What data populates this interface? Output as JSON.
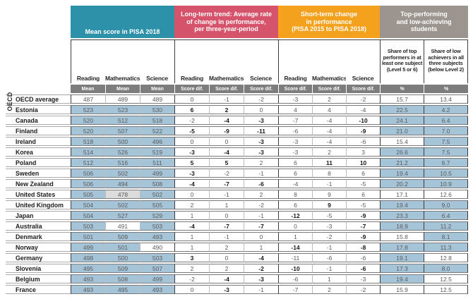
{
  "side_label": "OECD",
  "header": {
    "groups": [
      {
        "title_lines": [
          "Mean score in PISA 2018"
        ],
        "color": "#2d91a9"
      },
      {
        "title_lines": [
          "Long-term trend: Average rate",
          "of change in performance,",
          "per three-year-period"
        ],
        "color": "#d5536b"
      },
      {
        "title_lines": [
          "Short-term change",
          "in performance",
          "(PISA 2015 to PISA 2018)"
        ],
        "color": "#f4a11d"
      },
      {
        "title_lines": [
          "Top-performing",
          "and low-achieving",
          "students"
        ],
        "color": "#9c948e"
      }
    ],
    "subjects": [
      "Reading",
      "Mathematics",
      "Science"
    ],
    "share_top_label": "Share of top performers in at least one subject (Level 5 or 6)",
    "share_low_label": "Share of low achievers in all three subjects (below Level 2)",
    "measure_mean": "Mean",
    "measure_scoredif": "Score dif.",
    "measure_pct": "%"
  },
  "legend_colors": {
    "above_oecd_avg_cell": "#a6c4d7",
    "below_oecd_avg_cell": "#dcdcdc",
    "significant_value": "bold"
  },
  "rows": [
    {
      "name": "OECD average",
      "cells": [
        {
          "v": "487"
        },
        {
          "v": "489"
        },
        {
          "v": "489"
        },
        {
          "v": "0"
        },
        {
          "v": "-1"
        },
        {
          "v": "-2"
        },
        {
          "v": "-3"
        },
        {
          "v": "2"
        },
        {
          "v": "-2"
        },
        {
          "v": "15.7"
        },
        {
          "v": "13.4"
        }
      ]
    },
    {
      "name": "Estonia",
      "cells": [
        {
          "v": "523",
          "c": "b"
        },
        {
          "v": "523",
          "c": "b"
        },
        {
          "v": "530",
          "c": "b"
        },
        {
          "v": "6",
          "f": 1
        },
        {
          "v": "2",
          "f": 1
        },
        {
          "v": "0"
        },
        {
          "v": "4"
        },
        {
          "v": "4"
        },
        {
          "v": "-4"
        },
        {
          "v": "22.5",
          "c": "b"
        },
        {
          "v": "4.2",
          "c": "b"
        }
      ]
    },
    {
      "name": "Canada",
      "cells": [
        {
          "v": "520",
          "c": "b"
        },
        {
          "v": "512",
          "c": "b"
        },
        {
          "v": "518",
          "c": "b"
        },
        {
          "v": "-2"
        },
        {
          "v": "-4",
          "f": 1
        },
        {
          "v": "-3",
          "f": 1
        },
        {
          "v": "-7"
        },
        {
          "v": "-4"
        },
        {
          "v": "-10",
          "f": 1
        },
        {
          "v": "24.1",
          "c": "b"
        },
        {
          "v": "6.4",
          "c": "b"
        }
      ]
    },
    {
      "name": "Finland",
      "cells": [
        {
          "v": "520",
          "c": "b"
        },
        {
          "v": "507",
          "c": "b"
        },
        {
          "v": "522",
          "c": "b"
        },
        {
          "v": "-5",
          "f": 1
        },
        {
          "v": "-9",
          "f": 1
        },
        {
          "v": "-11",
          "f": 1
        },
        {
          "v": "-6"
        },
        {
          "v": "-4"
        },
        {
          "v": "-9",
          "f": 1
        },
        {
          "v": "21.0",
          "c": "b"
        },
        {
          "v": "7.0",
          "c": "b"
        }
      ]
    },
    {
      "name": "Ireland",
      "cells": [
        {
          "v": "518",
          "c": "b"
        },
        {
          "v": "500",
          "c": "b"
        },
        {
          "v": "496",
          "c": "b"
        },
        {
          "v": "0"
        },
        {
          "v": "0"
        },
        {
          "v": "-3",
          "f": 1
        },
        {
          "v": "-3"
        },
        {
          "v": "-4"
        },
        {
          "v": "-6"
        },
        {
          "v": "15.4"
        },
        {
          "v": "7.5",
          "c": "b"
        }
      ]
    },
    {
      "name": "Korea",
      "cells": [
        {
          "v": "514",
          "c": "b"
        },
        {
          "v": "526",
          "c": "b"
        },
        {
          "v": "519",
          "c": "b"
        },
        {
          "v": "-3",
          "f": 1
        },
        {
          "v": "-4",
          "f": 1
        },
        {
          "v": "-3",
          "f": 1
        },
        {
          "v": "-3"
        },
        {
          "v": "2"
        },
        {
          "v": "3"
        },
        {
          "v": "26.6",
          "c": "b"
        },
        {
          "v": "7.5",
          "c": "b"
        }
      ]
    },
    {
      "name": "Poland",
      "cells": [
        {
          "v": "512",
          "c": "b"
        },
        {
          "v": "516",
          "c": "b"
        },
        {
          "v": "511",
          "c": "b"
        },
        {
          "v": "5",
          "f": 1
        },
        {
          "v": "5",
          "f": 1
        },
        {
          "v": "2"
        },
        {
          "v": "6"
        },
        {
          "v": "11",
          "f": 1
        },
        {
          "v": "10",
          "f": 1
        },
        {
          "v": "21.2",
          "c": "b"
        },
        {
          "v": "6.7",
          "c": "b"
        }
      ]
    },
    {
      "name": "Sweden",
      "cells": [
        {
          "v": "506",
          "c": "b"
        },
        {
          "v": "502",
          "c": "b"
        },
        {
          "v": "499",
          "c": "b"
        },
        {
          "v": "-3",
          "f": 1
        },
        {
          "v": "-2"
        },
        {
          "v": "-1"
        },
        {
          "v": "6"
        },
        {
          "v": "8"
        },
        {
          "v": "6"
        },
        {
          "v": "19.4",
          "c": "b"
        },
        {
          "v": "10.5",
          "c": "b"
        }
      ]
    },
    {
      "name": "New Zealand",
      "cells": [
        {
          "v": "506",
          "c": "b"
        },
        {
          "v": "494",
          "c": "b"
        },
        {
          "v": "508",
          "c": "b"
        },
        {
          "v": "-4",
          "f": 1
        },
        {
          "v": "-7",
          "f": 1
        },
        {
          "v": "-6",
          "f": 1
        },
        {
          "v": "-4"
        },
        {
          "v": "-1"
        },
        {
          "v": "-5"
        },
        {
          "v": "20.2",
          "c": "b"
        },
        {
          "v": "10.9",
          "c": "b"
        }
      ]
    },
    {
      "name": "United States",
      "cells": [
        {
          "v": "505",
          "c": "b"
        },
        {
          "v": "478",
          "c": "g"
        },
        {
          "v": "502",
          "c": "b"
        },
        {
          "v": "0"
        },
        {
          "v": "-1"
        },
        {
          "v": "2"
        },
        {
          "v": "8"
        },
        {
          "v": "9"
        },
        {
          "v": "6"
        },
        {
          "v": "17.1"
        },
        {
          "v": "12.6"
        }
      ]
    },
    {
      "name": "United Kingdom",
      "cells": [
        {
          "v": "504",
          "c": "b"
        },
        {
          "v": "502",
          "c": "b"
        },
        {
          "v": "505",
          "c": "b"
        },
        {
          "v": "2"
        },
        {
          "v": "1"
        },
        {
          "v": "-2"
        },
        {
          "v": "6"
        },
        {
          "v": "9",
          "f": 1
        },
        {
          "v": "-5"
        },
        {
          "v": "19.4",
          "c": "b"
        },
        {
          "v": "9.0",
          "c": "b"
        }
      ]
    },
    {
      "name": "Japan",
      "cells": [
        {
          "v": "504",
          "c": "b"
        },
        {
          "v": "527",
          "c": "b"
        },
        {
          "v": "529",
          "c": "b"
        },
        {
          "v": "1"
        },
        {
          "v": "0"
        },
        {
          "v": "-1"
        },
        {
          "v": "-12",
          "f": 1
        },
        {
          "v": "-5"
        },
        {
          "v": "-9",
          "f": 1
        },
        {
          "v": "23.3",
          "c": "b"
        },
        {
          "v": "6.4",
          "c": "b"
        }
      ]
    },
    {
      "name": "Australia",
      "cells": [
        {
          "v": "503",
          "c": "b"
        },
        {
          "v": "491"
        },
        {
          "v": "503",
          "c": "b"
        },
        {
          "v": "-4",
          "f": 1
        },
        {
          "v": "-7",
          "f": 1
        },
        {
          "v": "-7",
          "f": 1
        },
        {
          "v": "0"
        },
        {
          "v": "-3"
        },
        {
          "v": "-7",
          "f": 1
        },
        {
          "v": "18.9",
          "c": "b"
        },
        {
          "v": "11.2",
          "c": "b"
        }
      ]
    },
    {
      "name": "Denmark",
      "cells": [
        {
          "v": "501",
          "c": "b"
        },
        {
          "v": "509",
          "c": "b"
        },
        {
          "v": "493",
          "c": "b"
        },
        {
          "v": "1"
        },
        {
          "v": "-1"
        },
        {
          "v": "0"
        },
        {
          "v": "1"
        },
        {
          "v": "-2"
        },
        {
          "v": "-9",
          "f": 1
        },
        {
          "v": "15.8"
        },
        {
          "v": "8.1",
          "c": "b"
        }
      ]
    },
    {
      "name": "Norway",
      "cells": [
        {
          "v": "499",
          "c": "b"
        },
        {
          "v": "501",
          "c": "b"
        },
        {
          "v": "490"
        },
        {
          "v": "1"
        },
        {
          "v": "2"
        },
        {
          "v": "1"
        },
        {
          "v": "-14",
          "f": 1
        },
        {
          "v": "-1"
        },
        {
          "v": "-8",
          "f": 1
        },
        {
          "v": "17.8",
          "c": "b"
        },
        {
          "v": "11.3",
          "c": "b"
        }
      ]
    },
    {
      "name": "Germany",
      "cells": [
        {
          "v": "498",
          "c": "b"
        },
        {
          "v": "500",
          "c": "b"
        },
        {
          "v": "503",
          "c": "b"
        },
        {
          "v": "3",
          "f": 1
        },
        {
          "v": "0"
        },
        {
          "v": "-4",
          "f": 1
        },
        {
          "v": "-11"
        },
        {
          "v": "-6"
        },
        {
          "v": "-6"
        },
        {
          "v": "19.1",
          "c": "b"
        },
        {
          "v": "12.8"
        }
      ]
    },
    {
      "name": "Slovenia",
      "cells": [
        {
          "v": "495",
          "c": "b"
        },
        {
          "v": "509",
          "c": "b"
        },
        {
          "v": "507",
          "c": "b"
        },
        {
          "v": "2"
        },
        {
          "v": "2"
        },
        {
          "v": "-2",
          "f": 1
        },
        {
          "v": "-10",
          "f": 1
        },
        {
          "v": "-1"
        },
        {
          "v": "-6",
          "f": 1
        },
        {
          "v": "17.3",
          "c": "b"
        },
        {
          "v": "8.0",
          "c": "b"
        }
      ]
    },
    {
      "name": "Belgium",
      "cells": [
        {
          "v": "493",
          "c": "b"
        },
        {
          "v": "508",
          "c": "b"
        },
        {
          "v": "499",
          "c": "b"
        },
        {
          "v": "-2"
        },
        {
          "v": "-4",
          "f": 1
        },
        {
          "v": "-3",
          "f": 1
        },
        {
          "v": "-6"
        },
        {
          "v": "1"
        },
        {
          "v": "-3"
        },
        {
          "v": "19.4",
          "c": "b"
        },
        {
          "v": "12.5"
        }
      ]
    },
    {
      "name": "France",
      "cells": [
        {
          "v": "493",
          "c": "b"
        },
        {
          "v": "495",
          "c": "b"
        },
        {
          "v": "493",
          "c": "b"
        },
        {
          "v": "0"
        },
        {
          "v": "-3",
          "f": 1
        },
        {
          "v": "-1"
        },
        {
          "v": "-7"
        },
        {
          "v": "2"
        },
        {
          "v": "-2"
        },
        {
          "v": "15.9"
        },
        {
          "v": "12.5"
        }
      ]
    }
  ]
}
